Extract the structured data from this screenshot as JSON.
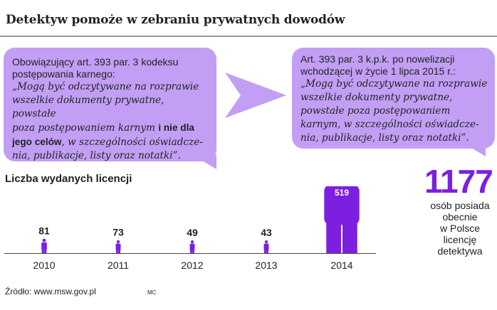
{
  "title": "Detektyw pomoże w zebraniu prywatnych dowodów",
  "left_box": {
    "lead_lines": [
      "Obowiązujący art. 393 par. 3 kodeksu",
      "postępowania karnego:"
    ],
    "quote_line1": "„Mogą być odczytywane na rozprawie",
    "quote_line2": "wszelkie dokumenty prywatne, powstałe",
    "quote_line3_pre": "poza postępowaniem karnym ",
    "quote_line3_bold": "i nie dla",
    "quote_line4_bold": "jego celów",
    "quote_line4_post": ", w szczególności oświadcze-",
    "quote_line5": "nia, publikacje, listy oraz notatki”."
  },
  "right_box": {
    "lead_lines": [
      "Art. 393 par. 3 k.p.k. po nowelizacji",
      "wchodzącej w życie 1 lipca 2015 r.:"
    ],
    "quote_lines": [
      "„Mogą być odczytywane na rozprawie",
      "wszelkie dokumenty prywatne,",
      "powstałe poza postępowaniem",
      "karnym, w szczególności oświadcze-",
      "nia, publikacje, listy oraz notatki”."
    ]
  },
  "chart_label": "Liczba wydanych licencji",
  "chart_data": {
    "type": "bar",
    "title": "Liczba wydanych licencji",
    "categories": [
      "2010",
      "2011",
      "2012",
      "2013",
      "2014"
    ],
    "values": [
      81,
      73,
      49,
      43,
      519
    ],
    "data_labels": [
      "81",
      "73",
      "49",
      "43",
      "519"
    ],
    "mark": "person-icon",
    "color": "#7c1fe0",
    "highlight_label_color": "#ffffff"
  },
  "total": {
    "value": "1177",
    "caption_lines": [
      "osób posiada",
      "obecnie",
      "w Polsce",
      "licencję",
      "detektywa"
    ]
  },
  "source": "Źródło: www.msw.gov.pl",
  "credit": "MC",
  "colors": {
    "bubble": "#c29ff5",
    "accent": "#7c1fe0",
    "arrow": "#c29ff5",
    "rule": "#9a9a9a"
  }
}
